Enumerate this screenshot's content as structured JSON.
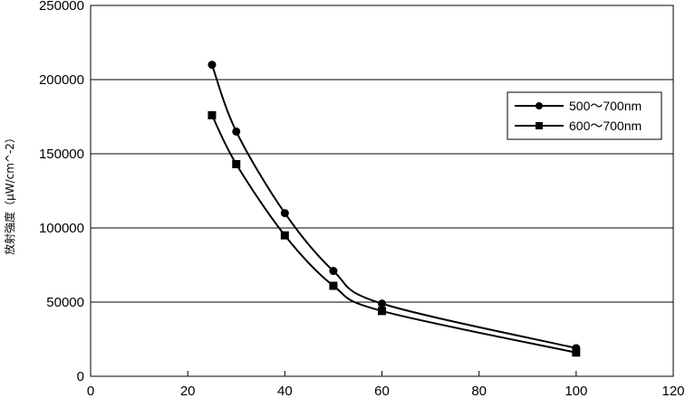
{
  "chart_data": {
    "type": "line",
    "title": "",
    "xlabel": "",
    "ylabel": "放射強度（μW/cm^-2）",
    "xlim": [
      0,
      120
    ],
    "ylim": [
      0,
      250000
    ],
    "x_ticks": [
      0,
      20,
      40,
      60,
      80,
      100,
      120
    ],
    "x_tick_labels": [
      "0",
      "20",
      "40",
      "60",
      "80",
      "100",
      "120"
    ],
    "y_ticks": [
      0,
      50000,
      100000,
      150000,
      200000,
      250000
    ],
    "y_tick_labels": [
      "0",
      "50000",
      "100000",
      "150000",
      "200000",
      "250000"
    ],
    "grid": "horizontal",
    "legend_position": "right",
    "series": [
      {
        "name": "500～700nm",
        "marker": "circle",
        "x": [
          25,
          30,
          40,
          50,
          60,
          100
        ],
        "y": [
          210000,
          165000,
          110000,
          71000,
          49000,
          19000
        ]
      },
      {
        "name": "600～700nm",
        "marker": "square",
        "x": [
          25,
          30,
          40,
          50,
          60,
          100
        ],
        "y": [
          176000,
          143000,
          95000,
          61000,
          44000,
          16000
        ]
      }
    ]
  }
}
